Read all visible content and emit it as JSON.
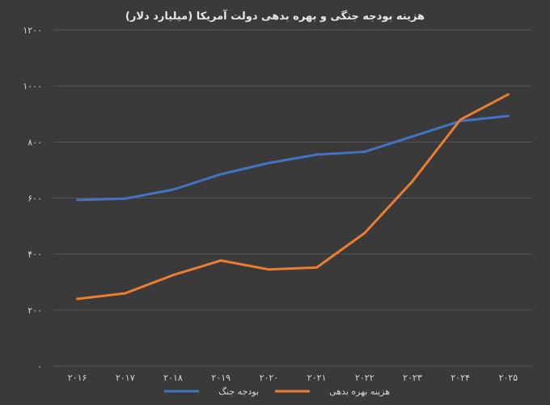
{
  "chart_data": {
    "type": "line",
    "title": "هزینه بودجه جنگی و بهره بدهی دولت آمریکا (میلیارد دلار)",
    "xlabel": "",
    "ylabel": "",
    "x": [
      "۲۰۱۶",
      "۲۰۱۷",
      "۲۰۱۸",
      "۲۰۱۹",
      "۲۰۲۰",
      "۲۰۲۱",
      "۲۰۲۲",
      "۲۰۲۳",
      "۲۰۲۴",
      "۲۰۲۵"
    ],
    "ylim": [
      0,
      1200
    ],
    "yticks": [
      0,
      200,
      400,
      600,
      800,
      1000,
      1200
    ],
    "ytick_labels": [
      "۰",
      "۲۰۰",
      "۴۰۰",
      "۶۰۰",
      "۸۰۰",
      "۱۰۰۰",
      "۱۲۰۰"
    ],
    "grid": true,
    "legend_position": "bottom",
    "series": [
      {
        "name": "بودجه جنگ",
        "color": "#4472c4",
        "values": [
          593,
          598,
          630,
          685,
          725,
          755,
          765,
          820,
          875,
          893
        ]
      },
      {
        "name": "هزینه بهره بدهی",
        "color": "#ed7d31",
        "values": [
          240,
          260,
          325,
          377,
          345,
          352,
          475,
          660,
          880,
          970
        ]
      }
    ]
  }
}
